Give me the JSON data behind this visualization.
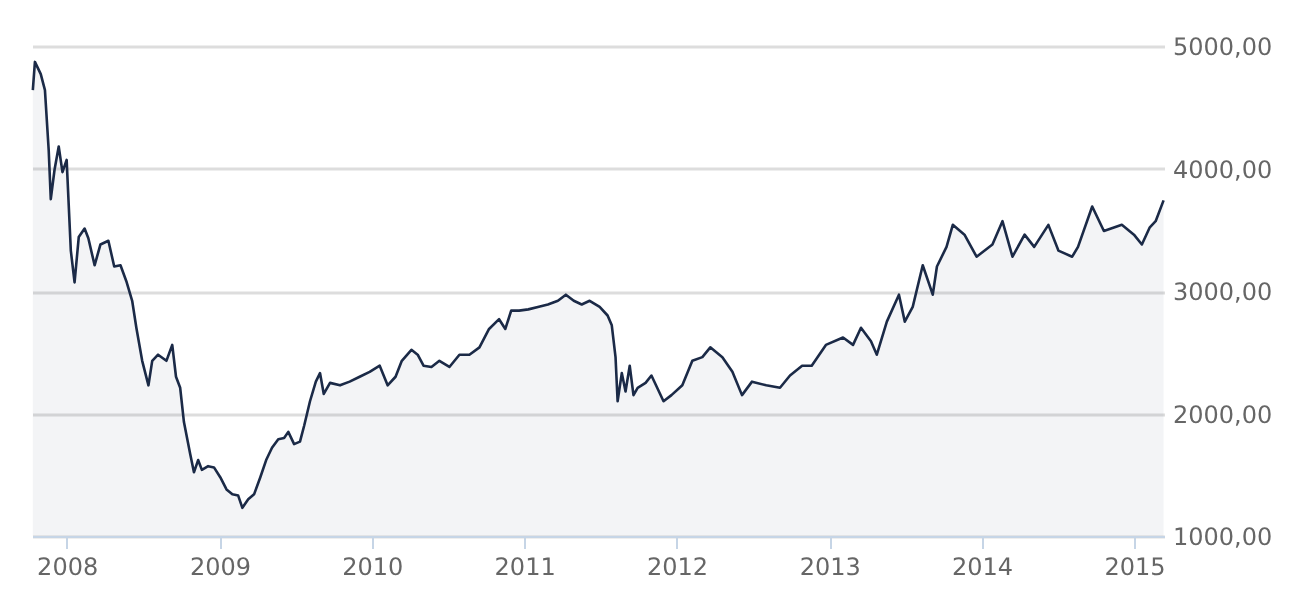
{
  "chart_data": {
    "type": "area",
    "x": [
      "2007-10-12",
      "2007-10-17",
      "2007-10-31",
      "2007-11-10",
      "2007-11-19",
      "2007-11-24",
      "2007-12-03",
      "2007-12-13",
      "2007-12-22",
      "2008-01-01",
      "2008-01-11",
      "2008-01-20",
      "2008-01-30",
      "2008-02-13",
      "2008-02-22",
      "2008-03-08",
      "2008-03-22",
      "2008-04-10",
      "2008-04-24",
      "2008-05-09",
      "2008-05-23",
      "2008-06-06",
      "2008-06-16",
      "2008-06-30",
      "2008-07-15",
      "2008-07-24",
      "2008-08-07",
      "2008-08-27",
      "2008-09-10",
      "2008-09-19",
      "2008-09-29",
      "2008-10-08",
      "2008-10-23",
      "2008-11-01",
      "2008-11-11",
      "2008-11-20",
      "2008-12-05",
      "2008-12-19",
      "2009-01-03",
      "2009-01-18",
      "2009-02-01",
      "2009-02-15",
      "2009-02-25",
      "2009-03-11",
      "2009-03-25",
      "2009-04-09",
      "2009-04-23",
      "2009-05-07",
      "2009-05-22",
      "2009-06-05",
      "2009-06-15",
      "2009-06-29",
      "2009-07-13",
      "2009-07-23",
      "2009-08-06",
      "2009-08-20",
      "2009-08-30",
      "2009-09-08",
      "2009-09-23",
      "2009-10-17",
      "2009-11-09",
      "2009-12-03",
      "2009-12-27",
      "2010-01-20",
      "2010-02-08",
      "2010-02-27",
      "2010-03-14",
      "2010-04-06",
      "2010-04-21",
      "2010-05-05",
      "2010-05-24",
      "2010-06-12",
      "2010-07-06",
      "2010-07-30",
      "2010-08-23",
      "2010-09-16",
      "2010-10-09",
      "2010-11-02",
      "2010-11-17",
      "2010-12-01",
      "2010-12-20",
      "2011-01-11",
      "2011-02-03",
      "2011-02-27",
      "2011-03-23",
      "2011-04-11",
      "2011-04-30",
      "2011-05-19",
      "2011-06-07",
      "2011-07-01",
      "2011-07-20",
      "2011-07-30",
      "2011-08-08",
      "2011-08-13",
      "2011-08-23",
      "2011-09-01",
      "2011-09-11",
      "2011-09-20",
      "2011-09-30",
      "2011-10-19",
      "2011-11-02",
      "2011-12-01",
      "2011-12-20",
      "2012-01-15",
      "2012-02-08",
      "2012-03-03",
      "2012-03-22",
      "2012-04-20",
      "2012-05-14",
      "2012-06-06",
      "2012-06-30",
      "2012-08-03",
      "2012-09-05",
      "2012-09-29",
      "2012-10-28",
      "2012-11-20",
      "2012-12-24",
      "2013-02-03",
      "2013-02-27",
      "2013-03-18",
      "2013-04-11",
      "2013-04-25",
      "2013-05-19",
      "2013-06-17",
      "2013-07-01",
      "2013-07-20",
      "2013-08-13",
      "2013-09-06",
      "2013-09-16",
      "2013-10-09",
      "2013-10-24",
      "2013-11-21",
      "2013-12-20",
      "2014-01-27",
      "2014-02-20",
      "2014-03-16",
      "2014-04-14",
      "2014-05-07",
      "2014-06-10",
      "2014-07-04",
      "2014-08-06",
      "2014-08-20",
      "2014-09-23",
      "2014-10-21",
      "2014-12-03",
      "2015-01-01",
      "2015-01-20",
      "2015-02-08",
      "2015-02-22",
      "2015-03-13"
    ],
    "series": [
      {
        "color": "#1b2a47",
        "values": [
          4640,
          4870,
          4770,
          4640,
          4150,
          3750,
          3990,
          4180,
          3970,
          4070,
          3330,
          3070,
          3440,
          3510,
          3430,
          3210,
          3380,
          3410,
          3200,
          3210,
          3080,
          2920,
          2700,
          2430,
          2230,
          2430,
          2480,
          2430,
          2560,
          2300,
          2210,
          1930,
          1670,
          1520,
          1620,
          1540,
          1570,
          1560,
          1480,
          1380,
          1340,
          1330,
          1230,
          1300,
          1340,
          1480,
          1620,
          1720,
          1790,
          1800,
          1850,
          1750,
          1770,
          1900,
          2100,
          2260,
          2330,
          2160,
          2250,
          2230,
          2260,
          2300,
          2340,
          2390,
          2230,
          2300,
          2430,
          2520,
          2480,
          2390,
          2380,
          2430,
          2380,
          2480,
          2480,
          2540,
          2690,
          2770,
          2690,
          2840,
          2840,
          2850,
          2870,
          2890,
          2920,
          2970,
          2920,
          2890,
          2920,
          2870,
          2800,
          2720,
          2460,
          2100,
          2330,
          2180,
          2390,
          2150,
          2210,
          2250,
          2310,
          2100,
          2150,
          2230,
          2430,
          2460,
          2540,
          2460,
          2340,
          2150,
          2260,
          2230,
          2210,
          2310,
          2390,
          2390,
          2560,
          2620,
          2560,
          2700,
          2590,
          2480,
          2750,
          2970,
          2750,
          2870,
          3210,
          2970,
          3200,
          3360,
          3540,
          3460,
          3280,
          3380,
          3570,
          3280,
          3460,
          3360,
          3540,
          3330,
          3280,
          3360,
          3690,
          3490,
          3540,
          3460,
          3380,
          3520,
          3570,
          3740
        ]
      }
    ],
    "xlim": [
      "2007-10-10",
      "2015-03-14"
    ],
    "xticks": [
      "2008",
      "2009",
      "2010",
      "2011",
      "2012",
      "2013",
      "2014",
      "2015"
    ],
    "ylim": [
      1000,
      5000
    ],
    "yticks": [
      {
        "value": 1000,
        "label": "1000,00"
      },
      {
        "value": 2000,
        "label": "2000,00"
      },
      {
        "value": 3000,
        "label": "3000,00"
      },
      {
        "value": 4000,
        "label": "4000,00"
      },
      {
        "value": 5000,
        "label": "5000,00"
      }
    ],
    "grid": "y"
  }
}
